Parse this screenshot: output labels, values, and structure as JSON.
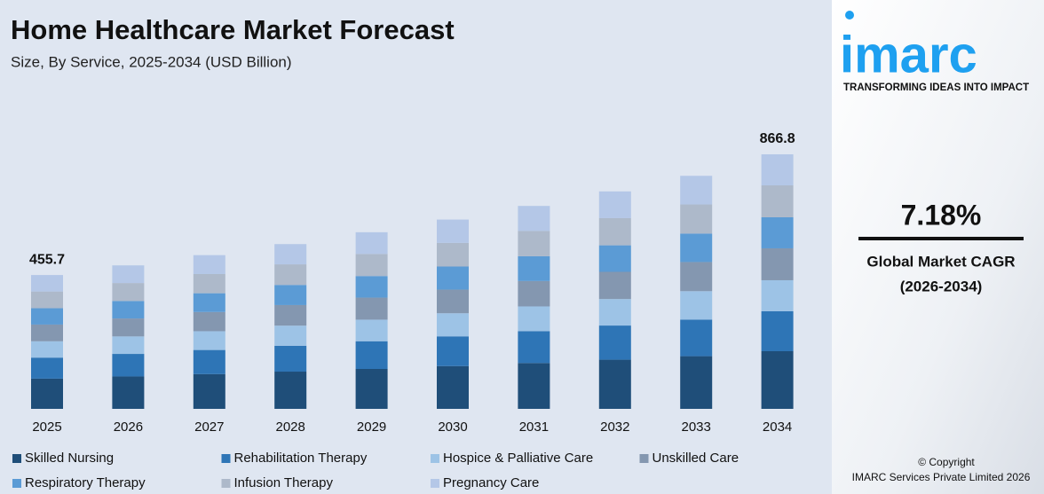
{
  "chart_data": {
    "type": "stacked_bar",
    "title": "Home Healthcare Market Forecast",
    "subtitle": "Size, By Service, 2025-2034 (USD Billion)",
    "categories": [
      "2025",
      "2026",
      "2027",
      "2028",
      "2029",
      "2030",
      "2031",
      "2032",
      "2033",
      "2034"
    ],
    "series": [
      {
        "name": "Skilled Nursing",
        "color": "#1f4e79",
        "values": [
          103.0,
          110.4,
          118.3,
          126.8,
          135.9,
          145.7,
          156.1,
          167.4,
          179.4,
          196.3
        ]
      },
      {
        "name": "Rehabilitation Therapy",
        "color": "#2e75b6",
        "values": [
          71.5,
          76.7,
          82.2,
          88.1,
          94.4,
          101.2,
          108.5,
          116.3,
          124.6,
          136.0
        ]
      },
      {
        "name": "Hospice & Palliative Care",
        "color": "#9dc3e6",
        "values": [
          55.6,
          59.6,
          63.9,
          68.5,
          73.4,
          78.6,
          84.3,
          90.3,
          96.8,
          105.7
        ]
      },
      {
        "name": "Unskilled Care",
        "color": "#8497b0",
        "values": [
          57.0,
          61.1,
          65.4,
          70.1,
          75.2,
          80.6,
          86.4,
          92.6,
          99.2,
          108.7
        ]
      },
      {
        "name": "Respiratory Therapy",
        "color": "#5b9bd5",
        "values": [
          55.6,
          59.6,
          63.9,
          68.5,
          73.4,
          78.6,
          84.3,
          90.3,
          96.8,
          105.7
        ]
      },
      {
        "name": "Infusion Therapy",
        "color": "#adb9ca",
        "values": [
          57.0,
          61.1,
          65.4,
          70.1,
          75.2,
          80.6,
          86.4,
          92.6,
          99.2,
          108.7
        ]
      },
      {
        "name": "Pregnancy Care",
        "color": "#b4c7e7",
        "values": [
          56.0,
          60.1,
          64.4,
          69.0,
          74.0,
          79.3,
          85.0,
          91.1,
          97.6,
          105.7
        ]
      }
    ],
    "total_labels": [
      {
        "category": "2025",
        "value": 455.7
      },
      {
        "category": "2034",
        "value": 866.8
      }
    ],
    "ylim": [
      0,
      900
    ]
  },
  "sidebar": {
    "logo": "imarc",
    "tagline": "TRANSFORMING IDEAS INTO IMPACT",
    "cagr": "7.18%",
    "cagr_label": "Global Market CAGR",
    "cagr_period": "(2026-2034)",
    "copyright": "© Copyright",
    "company": "IMARC Services Private Limited 2026"
  }
}
